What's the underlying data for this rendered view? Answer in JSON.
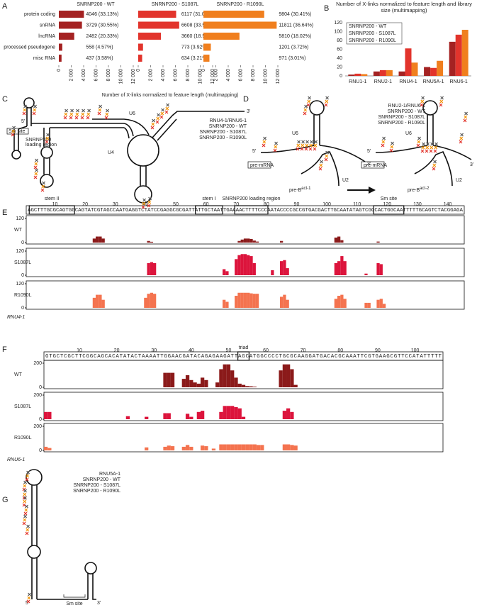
{
  "panel_labels": [
    "A",
    "B",
    "C",
    "D",
    "E",
    "F",
    "G"
  ],
  "chart_data": [
    {
      "type": "barh_panels",
      "categories": [
        "protein coding",
        "snRNA",
        "lncRNA",
        "processed pseudogene",
        "misc RNA"
      ],
      "series": [
        {
          "name": "SNRNP200 - WT",
          "color": "#a42222",
          "values": [
            4046,
            3729,
            2482,
            558,
            437
          ],
          "value_labels": [
            "4046 (33.13%)",
            "3729 (30.55%)",
            "2482 (20.33%)",
            "558 (4.57%)",
            "437 (3.58%)"
          ]
        },
        {
          "name": "SNRNP200 - S1087L",
          "color": "#e2342c",
          "values": [
            6117,
            6608,
            3660,
            773,
            634
          ],
          "value_labels": [
            "6117 (31.03%)",
            "6608 (33.52%)",
            "3660 (18.57%)",
            "773 (3.92%)",
            "634 (3.21%)"
          ]
        },
        {
          "name": "SNRNP200 - R1090L",
          "color": "#f07f1e",
          "values": [
            9804,
            11811,
            5810,
            1201,
            971
          ],
          "value_labels": [
            "9804 (30.41%)",
            "11811 (36.64%)",
            "5810 (18.02%)",
            "1201 (3.72%)",
            "971 (3.01%)"
          ]
        }
      ],
      "xlim": [
        0,
        12000
      ],
      "xticks": [
        0,
        {
          "value": 2000,
          "label": "2 000"
        },
        {
          "value": 4000,
          "label": "4 000"
        },
        {
          "value": 6000,
          "label": "6 000"
        },
        {
          "value": 8000,
          "label": "8 000"
        },
        {
          "value": 10000,
          "label": "10 000"
        },
        {
          "value": 12000,
          "label": "12 000"
        }
      ],
      "xlabel": "Number of X-links normalized to feature length (multimapping)"
    },
    {
      "type": "bar",
      "title": "Number of X-links normalized to feature length and library size (multimapping)",
      "categories": [
        "RNU1-1",
        "RNU2-1",
        "RNU4-1",
        "RNU5A-1",
        "RNU6-1"
      ],
      "series": [
        {
          "name": "SNRNP200 - WT",
          "color": "#a42222",
          "values": [
            3,
            10,
            10,
            20,
            77
          ]
        },
        {
          "name": "SNRNP200 - S1087L",
          "color": "#e2342c",
          "values": [
            5,
            13,
            62,
            18,
            93
          ]
        },
        {
          "name": "SNRNP200 - R1090L",
          "color": "#f07f1e",
          "values": [
            4,
            13,
            30,
            34,
            104
          ]
        }
      ],
      "ylim": [
        0,
        120
      ],
      "yticks": [
        0,
        20,
        40,
        60,
        80,
        100,
        120
      ],
      "legend": "upper left"
    },
    {
      "type": "coverage",
      "gene": "RNU4-1",
      "sequence": "AGCTTTGCGCAGTGGCAGTATCGTAGCCAATGAGGTCTATCCGAGGCGCGATTATTGCTAATTGAAAACTTTTCCCAATACCCCGCCGTGACGACTTGCAATATAGTCGGCACTGGCAATTTTTGCAGTCTACGGAGA",
      "xlim": [
        0,
        145
      ],
      "xticks": [
        10,
        20,
        30,
        40,
        50,
        60,
        70,
        80,
        90,
        100,
        110,
        120,
        130,
        140
      ],
      "ylim": [
        0,
        120
      ],
      "yticks": [
        0,
        120
      ],
      "annotations": [
        {
          "label": "stem II",
          "start": 2,
          "end": 16
        },
        {
          "label": "stem I",
          "start": 57,
          "end": 65
        },
        {
          "label": "SNRNP200 loading region",
          "start": 70,
          "end": 80
        },
        {
          "label": "Sm site",
          "start": 116,
          "end": 125
        }
      ],
      "series": [
        {
          "name": "WT",
          "color": "#8b1a1a",
          "x": [
            23,
            24,
            25,
            26,
            41,
            42,
            71,
            72,
            73,
            74,
            75,
            76,
            77,
            85,
            103,
            104,
            105,
            117
          ],
          "values": [
            20,
            30,
            30,
            20,
            8,
            4,
            8,
            15,
            20,
            20,
            18,
            10,
            5,
            8,
            25,
            30,
            12,
            5
          ]
        },
        {
          "name": "S1087L",
          "color": "#dc143c",
          "x": [
            41,
            42,
            43,
            66,
            67,
            70,
            71,
            72,
            73,
            74,
            75,
            76,
            82,
            85,
            86,
            87,
            103,
            104,
            105,
            106,
            113,
            117,
            118
          ],
          "values": [
            60,
            65,
            60,
            30,
            20,
            80,
            100,
            105,
            105,
            100,
            95,
            60,
            25,
            70,
            75,
            35,
            60,
            70,
            95,
            70,
            8,
            60,
            55
          ]
        },
        {
          "name": "R1090L",
          "color": "#f4734f",
          "x": [
            23,
            24,
            25,
            26,
            40,
            41,
            42,
            43,
            66,
            67,
            70,
            71,
            72,
            73,
            74,
            75,
            76,
            77,
            85,
            86,
            87,
            103,
            104,
            105,
            106,
            113,
            114,
            117,
            118,
            119
          ],
          "values": [
            50,
            65,
            65,
            40,
            50,
            70,
            75,
            70,
            40,
            30,
            60,
            75,
            75,
            75,
            75,
            72,
            70,
            70,
            55,
            65,
            40,
            45,
            60,
            65,
            45,
            25,
            25,
            40,
            45,
            20
          ]
        }
      ]
    },
    {
      "type": "coverage",
      "gene": "RNU6-1",
      "sequence": "GTGCTCGCTTCGGCAGCACATATACTAAAATTGGAACGATACAGAGAAGATTAGCATGGCCCCTGCGCAAGGATGACACGCAAATTCGTGAAGCGTTCCATATTTTT",
      "xlim": [
        0,
        107
      ],
      "xticks": [
        10,
        20,
        30,
        40,
        50,
        60,
        70,
        80,
        90,
        100
      ],
      "ylim": [
        0,
        200
      ],
      "yticks": [
        0,
        200
      ],
      "annotations": [
        {
          "label": "triad",
          "start": 53,
          "end": 55
        }
      ],
      "series": [
        {
          "name": "WT",
          "color": "#8b1a1a",
          "x": [
            33,
            34,
            35,
            38,
            39,
            40,
            41,
            42,
            43,
            44,
            47,
            48,
            49,
            50,
            51,
            52,
            53,
            54,
            55,
            56,
            57,
            64,
            65,
            66,
            67,
            68
          ],
          "values": [
            120,
            120,
            120,
            70,
            100,
            60,
            40,
            30,
            80,
            60,
            40,
            150,
            190,
            190,
            140,
            80,
            30,
            20,
            10,
            8,
            5,
            140,
            190,
            190,
            150,
            20
          ]
        },
        {
          "name": "S1087L",
          "color": "#dc143c",
          "x": [
            1,
            2,
            23,
            28,
            33,
            34,
            39,
            40,
            42,
            43,
            48,
            49,
            50,
            51,
            52,
            53,
            54,
            65,
            66,
            67
          ],
          "values": [
            60,
            60,
            25,
            20,
            50,
            50,
            45,
            20,
            60,
            70,
            60,
            110,
            110,
            110,
            100,
            90,
            20,
            70,
            90,
            60
          ]
        },
        {
          "name": "R1090L",
          "color": "#f4734f",
          "x": [
            1,
            2,
            28,
            33,
            34,
            35,
            38,
            39,
            40,
            43,
            44,
            46,
            48,
            49,
            50,
            51,
            52,
            53,
            54,
            55,
            56,
            57,
            58,
            59,
            65,
            66,
            67,
            68
          ],
          "values": [
            30,
            20,
            25,
            30,
            40,
            35,
            30,
            45,
            30,
            40,
            35,
            15,
            50,
            50,
            50,
            50,
            50,
            50,
            50,
            50,
            50,
            50,
            45,
            45,
            50,
            50,
            45,
            40
          ]
        }
      ]
    }
  ],
  "diagrams": {
    "C": {
      "legend": [
        "RNU4-1/RNU6-1",
        {
          "name": "SNRNP200 - WT",
          "color": "#555555"
        },
        {
          "name": "SNRNP200 - S1087L",
          "color": "#e2342c"
        },
        {
          "name": "SNRNP200 - R1090L",
          "color": "#f39200"
        }
      ],
      "labels": {
        "u6": "U6",
        "u4": "U4",
        "five": "5'",
        "three": "3'",
        "sm": "Sm site",
        "loading": [
          "SNRNP200",
          "loading region"
        ]
      }
    },
    "D": {
      "legend": [
        "RNU2-1/RNU6-1",
        {
          "name": "SNRNP200 - WT",
          "color": "#555555"
        },
        {
          "name": "SNRNP200 - S1087L",
          "color": "#e2342c"
        },
        {
          "name": "SNRNP200 - R1090L",
          "color": "#f39200"
        }
      ],
      "labels": {
        "u6": "U6",
        "u2": "U2",
        "five": "5'",
        "three": "3'",
        "premrna": "pre-mRNA",
        "state1": {
          "base": "pre-B",
          "sup": "act-1"
        },
        "state2": {
          "base": "pre-B",
          "sup": "act-2"
        }
      }
    },
    "G": {
      "legend": [
        "RNU5A-1",
        {
          "name": "SNRNP200 - WT",
          "color": "#555555"
        },
        {
          "name": "SNRNP200 - S1087L",
          "color": "#e2342c"
        },
        {
          "name": "SNRNP200 - R1090L",
          "color": "#f39200"
        }
      ],
      "labels": {
        "five": "5'",
        "three": "3'",
        "sm": "Sm site"
      }
    }
  }
}
